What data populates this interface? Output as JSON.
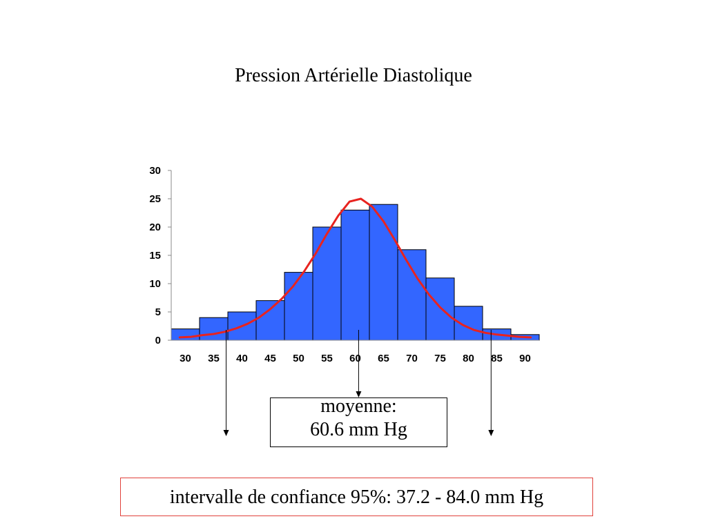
{
  "slide": {
    "title": "Pression Artérielle Diastolique",
    "mean_label": "moyenne:",
    "mean_value": "60.6 mm Hg",
    "ci_text": "intervalle de confiance 95%: 37.2 - 84.0 mm Hg"
  },
  "colors": {
    "bar_fill": "#3366ff",
    "bar_stroke": "#000000",
    "curve": "#e8231f",
    "ci_border": "#e0403a"
  },
  "chart_data": {
    "type": "bar",
    "title": "Pression Artérielle Diastolique",
    "xlabel": "",
    "ylabel": "",
    "ylim": [
      0,
      30
    ],
    "y_ticks": [
      "0",
      "5",
      "10",
      "15",
      "20",
      "25",
      "30"
    ],
    "x_ticks": [
      "30",
      "35",
      "40",
      "45",
      "50",
      "55",
      "60",
      "65",
      "70",
      "75",
      "80",
      "85",
      "90"
    ],
    "bins": [
      [
        27.5,
        32.5
      ],
      [
        32.5,
        37.5
      ],
      [
        37.5,
        42.5
      ],
      [
        42.5,
        47.5
      ],
      [
        47.5,
        52.5
      ],
      [
        52.5,
        57.5
      ],
      [
        57.5,
        62.5
      ],
      [
        62.5,
        67.5
      ],
      [
        67.5,
        72.5
      ],
      [
        72.5,
        77.5
      ],
      [
        77.5,
        82.5
      ],
      [
        82.5,
        87.5
      ],
      [
        87.5,
        92.5
      ]
    ],
    "values": [
      2,
      4,
      5,
      7,
      12,
      20,
      23,
      24,
      16,
      11,
      6,
      2,
      1
    ],
    "grid": false,
    "curve": {
      "type": "line",
      "x": [
        29,
        31,
        33,
        35,
        37,
        39,
        41,
        43,
        45,
        47,
        49,
        51,
        53,
        55,
        57,
        59,
        61,
        63,
        65,
        67,
        69,
        71,
        73,
        75,
        77,
        79,
        81,
        83,
        85,
        87,
        89,
        91
      ],
      "y": [
        0.5,
        0.6,
        0.9,
        1.1,
        1.5,
        2.1,
        2.9,
        4.0,
        5.5,
        7.3,
        9.5,
        12.2,
        15.3,
        18.8,
        22.0,
        24.5,
        25.0,
        23.6,
        21.0,
        17.7,
        14.2,
        10.9,
        8.1,
        5.8,
        4.0,
        2.7,
        1.8,
        1.3,
        1.0,
        0.8,
        0.6,
        0.5
      ]
    },
    "annotations": [
      {
        "type": "arrow",
        "x": 37.2
      },
      {
        "type": "arrow",
        "x": 60.6
      },
      {
        "type": "arrow",
        "x": 84.0
      }
    ]
  }
}
